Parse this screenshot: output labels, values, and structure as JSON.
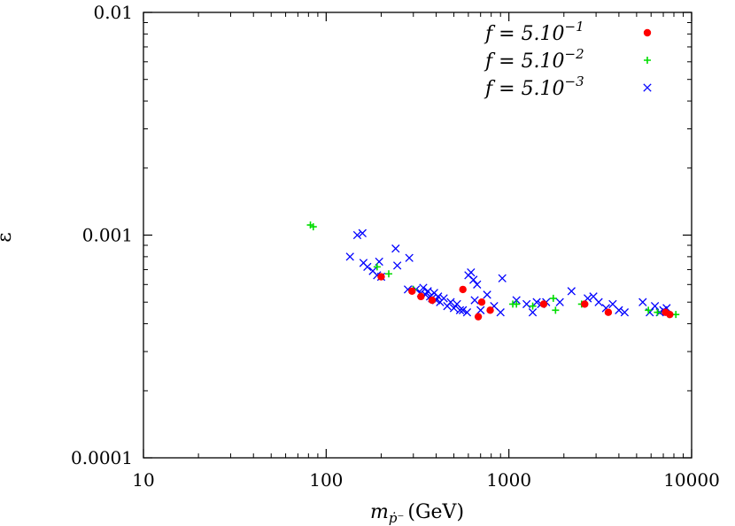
{
  "chart_data": {
    "type": "scatter",
    "title": "",
    "xlabel": "m",
    "xlabel_sub": "ṗ⁻",
    "xlabel_unit": "(GeV)",
    "ylabel": "ε",
    "xscale": "log",
    "yscale": "log",
    "xlim": [
      10,
      10000
    ],
    "ylim": [
      0.0001,
      0.01
    ],
    "xticks": [
      "10",
      "100",
      "1000",
      "10000"
    ],
    "yticks": [
      "0.0001",
      "0.001",
      "0.01"
    ],
    "grid": false,
    "legend_position": "top-right",
    "series": [
      {
        "name": "f = 5.10^-1",
        "label_main": "f = 5.10",
        "label_exp": "−1",
        "marker": "circle",
        "color": "#ff0000",
        "x": [
          200,
          295,
          330,
          380,
          560,
          680,
          710,
          790,
          1550,
          2600,
          3500,
          7200,
          7600
        ],
        "y": [
          0.00065,
          0.00056,
          0.00053,
          0.00051,
          0.00057,
          0.00043,
          0.0005,
          0.00046,
          0.00049,
          0.00049,
          0.00045,
          0.00045,
          0.00044
        ]
      },
      {
        "name": "f = 5.10^-2",
        "label_main": "f = 5.10",
        "label_exp": "−2",
        "marker": "plus",
        "color": "#00dd00",
        "x": [
          82,
          85,
          190,
          220,
          300,
          1050,
          1100,
          1350,
          1750,
          1800,
          2500,
          5800,
          6500,
          7500,
          8200
        ],
        "y": [
          0.00111,
          0.00109,
          0.00072,
          0.00067,
          0.00057,
          0.00049,
          0.00049,
          0.00048,
          0.00052,
          0.00046,
          0.00049,
          0.00046,
          0.00045,
          0.00044,
          0.00044
        ]
      },
      {
        "name": "f = 5.10^-3",
        "label_main": "f = 5.10",
        "label_exp": "−3",
        "marker": "cross",
        "color": "#0000ff",
        "x": [
          135,
          148,
          158,
          160,
          168,
          180,
          190,
          195,
          200,
          240,
          245,
          280,
          285,
          310,
          330,
          340,
          350,
          360,
          370,
          380,
          390,
          400,
          410,
          420,
          440,
          460,
          480,
          500,
          520,
          540,
          560,
          590,
          600,
          620,
          640,
          650,
          670,
          700,
          760,
          830,
          900,
          920,
          1100,
          1250,
          1350,
          1420,
          1500,
          1600,
          1900,
          2200,
          2700,
          2900,
          3100,
          3400,
          3700,
          4000,
          4300,
          5400,
          5900,
          6300,
          6700,
          7000,
          7300
        ],
        "y": [
          0.0008,
          0.001,
          0.00102,
          0.00075,
          0.00072,
          0.00069,
          0.00066,
          0.00076,
          0.00065,
          0.00087,
          0.00073,
          0.00057,
          0.00079,
          0.00057,
          0.00055,
          0.00058,
          0.00054,
          0.00056,
          0.00053,
          0.00052,
          0.00055,
          0.00051,
          0.00053,
          0.0005,
          0.00052,
          0.00048,
          0.0005,
          0.00047,
          0.00049,
          0.00046,
          0.00046,
          0.00045,
          0.00066,
          0.00068,
          0.00063,
          0.00051,
          0.0006,
          0.00046,
          0.00054,
          0.00048,
          0.00045,
          0.00064,
          0.00051,
          0.00049,
          0.00045,
          0.0005,
          0.00049,
          0.0005,
          0.0005,
          0.00056,
          0.00052,
          0.00053,
          0.0005,
          0.00047,
          0.00049,
          0.00046,
          0.00045,
          0.0005,
          0.00045,
          0.00048,
          0.00045,
          0.00046,
          0.00047
        ]
      }
    ]
  }
}
